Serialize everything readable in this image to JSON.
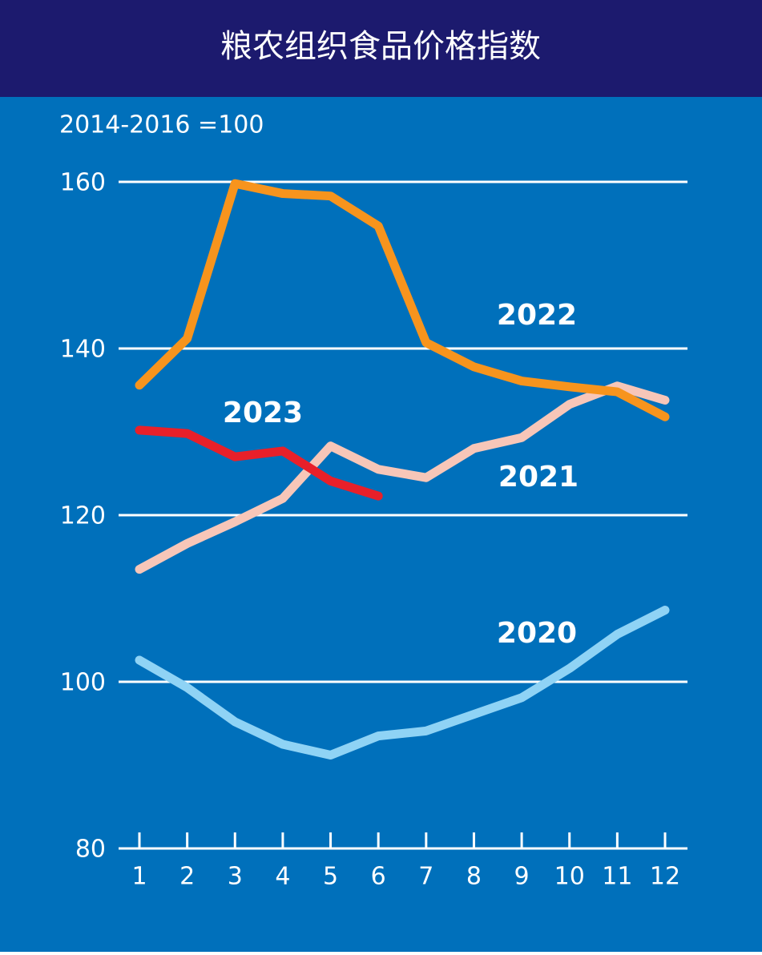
{
  "chart_data": {
    "type": "line",
    "title": "粮农组织食品价格指数",
    "subtitle": "2014-2016 =100",
    "categories": [
      "1",
      "2",
      "3",
      "4",
      "5",
      "6",
      "7",
      "8",
      "9",
      "10",
      "11",
      "12"
    ],
    "ylim": [
      80,
      160
    ],
    "yticks": [
      80,
      100,
      120,
      140,
      160
    ],
    "grid": true,
    "series": [
      {
        "name": "2020",
        "color": "#8fd3f5",
        "values": [
          102.6,
          99.3,
          95.2,
          92.5,
          91.2,
          93.5,
          94.1,
          96.1,
          98.1,
          101.6,
          105.7,
          108.6
        ]
      },
      {
        "name": "2021",
        "color": "#f7c6b8",
        "values": [
          113.5,
          116.6,
          119.2,
          122.0,
          128.3,
          125.5,
          124.5,
          128.0,
          129.3,
          133.3,
          135.5,
          133.8
        ]
      },
      {
        "name": "2022",
        "color": "#f7941d",
        "values": [
          135.6,
          141.2,
          159.8,
          158.6,
          158.3,
          154.7,
          140.7,
          137.8,
          136.1,
          135.4,
          134.8,
          131.8
        ]
      },
      {
        "name": "2023",
        "color": "#e8202a",
        "values": [
          130.2,
          129.8,
          127.0,
          127.7,
          124.1,
          122.3,
          null,
          null,
          null,
          null,
          null,
          null
        ]
      }
    ]
  }
}
